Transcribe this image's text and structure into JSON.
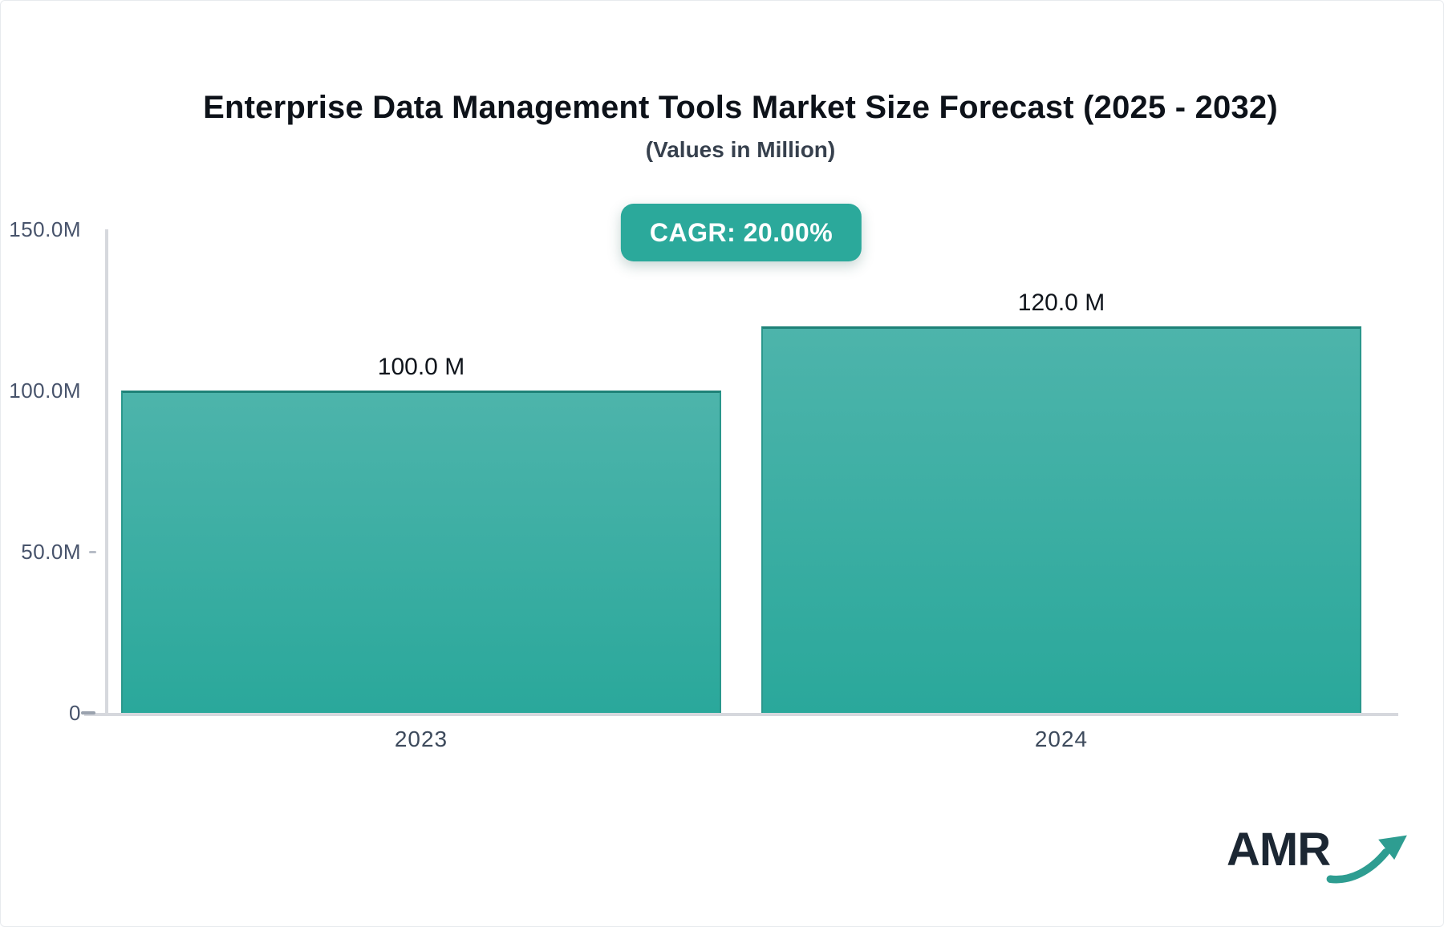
{
  "header": {
    "title": "Enterprise Data Management Tools Market Size Forecast (2025 - 2032)",
    "subtitle": "(Values in Million)",
    "cagr_label": "CAGR: 20.00%"
  },
  "chart_data": {
    "type": "bar",
    "categories": [
      "2023",
      "2024"
    ],
    "values": [
      100.0,
      120.0
    ],
    "value_labels": [
      "100.0 M",
      "120.0 M"
    ],
    "title": "Enterprise Data Management Tools Market Size Forecast (2025 - 2032)",
    "subtitle": "(Values in Million)",
    "xlabel": "",
    "ylabel": "",
    "units": "Million",
    "ylim": [
      0,
      150
    ],
    "yticks": [
      {
        "value": 150,
        "label": "150.0M",
        "dash": "none"
      },
      {
        "value": 100,
        "label": "100.0M",
        "dash": "none"
      },
      {
        "value": 50,
        "label": "50.0M",
        "dash": "short"
      },
      {
        "value": 0,
        "label": "0",
        "dash": "long"
      }
    ],
    "grid": false,
    "legend": "none",
    "bar_colors": {
      "top": "#4db4ab",
      "bottom": "#2aa89b",
      "edge": "#1f8278"
    }
  },
  "logo": {
    "text": "AMR",
    "arrow_color": "#2e9d91"
  },
  "colors": {
    "badge_bg": "#2ba99b",
    "badge_text": "#ffffff",
    "axis_line": "#d6d8dd",
    "tick_label": "#47536b",
    "category_label": "#3d4a5c",
    "value_label": "#10151c",
    "title": "#0d1219",
    "subtitle": "#36404d",
    "logo_text": "#1c2733"
  }
}
